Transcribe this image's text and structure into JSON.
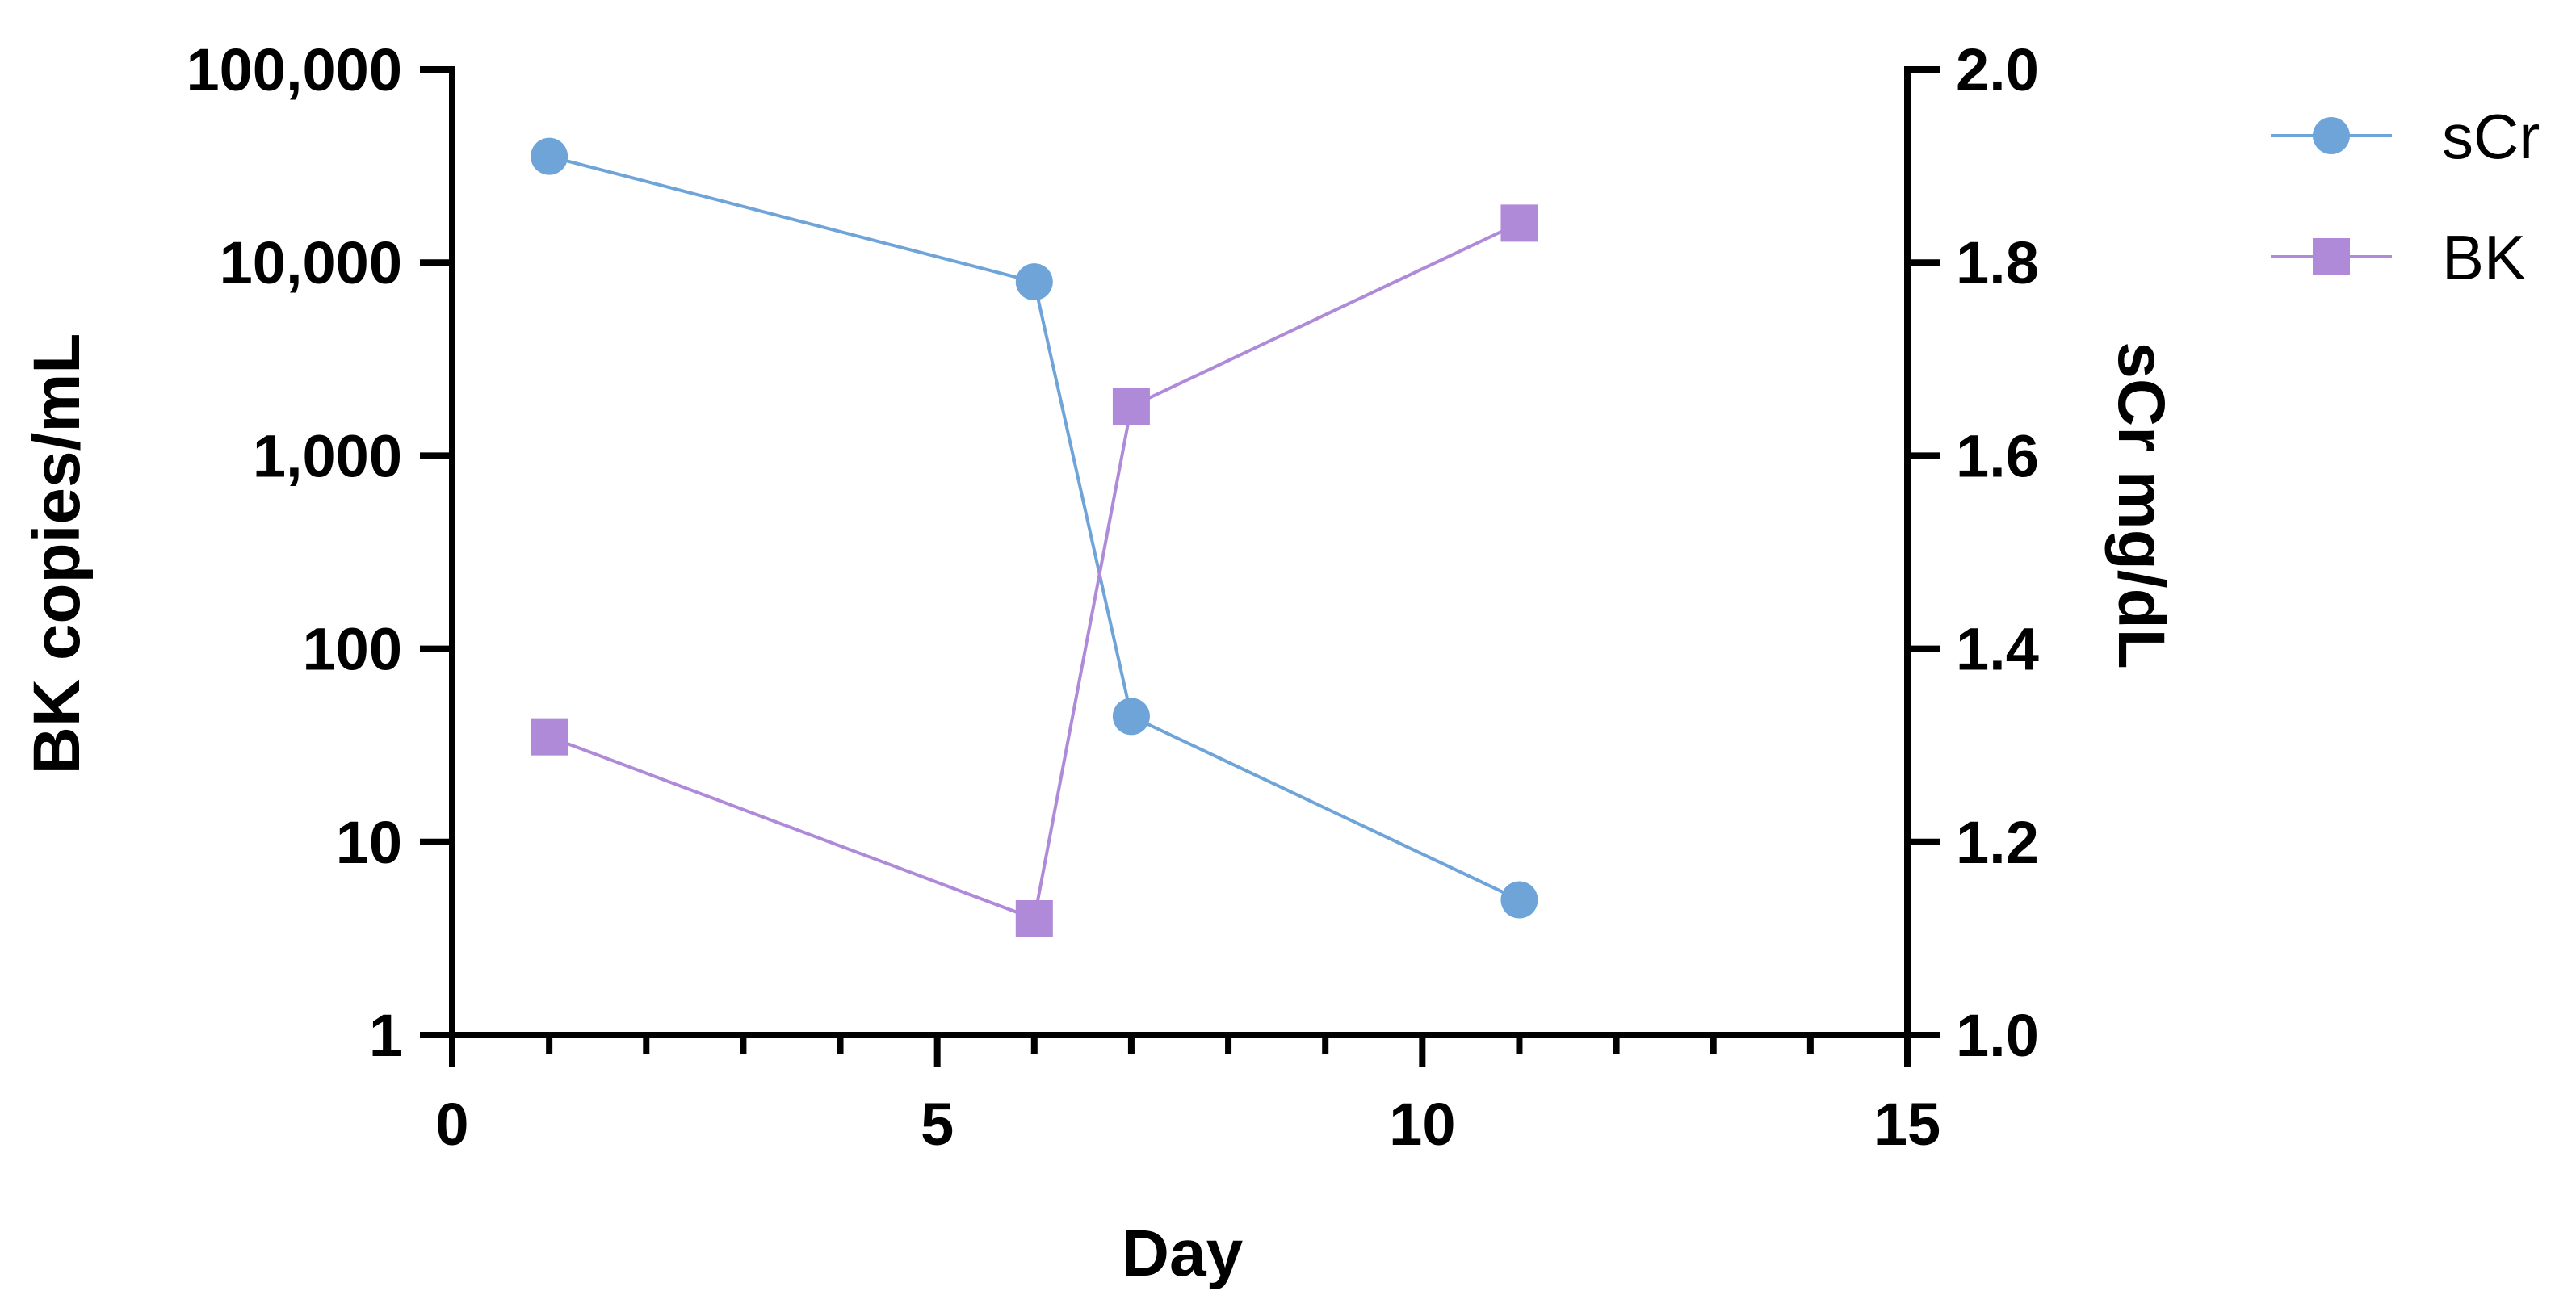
{
  "chart_data": {
    "type": "line",
    "title": "",
    "xlabel": "Day",
    "ylabel_left": "BK copies/mL",
    "ylabel_right": "sCr mg/dL",
    "x_axis": {
      "range": [
        0,
        15
      ],
      "major_ticks": [
        0,
        5,
        10,
        15
      ],
      "major_tick_labels": [
        "0",
        "5",
        "10",
        "15"
      ],
      "minor_ticks": [
        1,
        2,
        3,
        4,
        6,
        7,
        8,
        9,
        11,
        12,
        13,
        14
      ]
    },
    "y_left_axis": {
      "scale": "log",
      "range": [
        1,
        100000
      ],
      "ticks": [
        1,
        10,
        100,
        1000,
        10000,
        100000
      ],
      "tick_labels": [
        "1",
        "10",
        "100",
        "1,000",
        "10,000",
        "100,000"
      ]
    },
    "y_right_axis": {
      "scale": "linear",
      "range": [
        1.0,
        2.0
      ],
      "ticks": [
        1.0,
        1.2,
        1.4,
        1.6,
        1.8,
        2.0
      ],
      "tick_labels": [
        "1.0",
        "1.2",
        "1.4",
        "1.6",
        "1.8",
        "2.0"
      ]
    },
    "grid": false,
    "legend_position": "top-right",
    "series": [
      {
        "name": "sCr",
        "axis": "right",
        "marker": "circle",
        "color": "#6FA4D9",
        "x": [
          1,
          6,
          7,
          11
        ],
        "y": [
          1.91,
          1.78,
          1.33,
          1.14
        ]
      },
      {
        "name": "BK",
        "axis": "left",
        "marker": "square",
        "color": "#AF8AD9",
        "x": [
          1,
          6,
          7,
          11
        ],
        "y": [
          35,
          4,
          1800,
          16000
        ]
      }
    ]
  }
}
